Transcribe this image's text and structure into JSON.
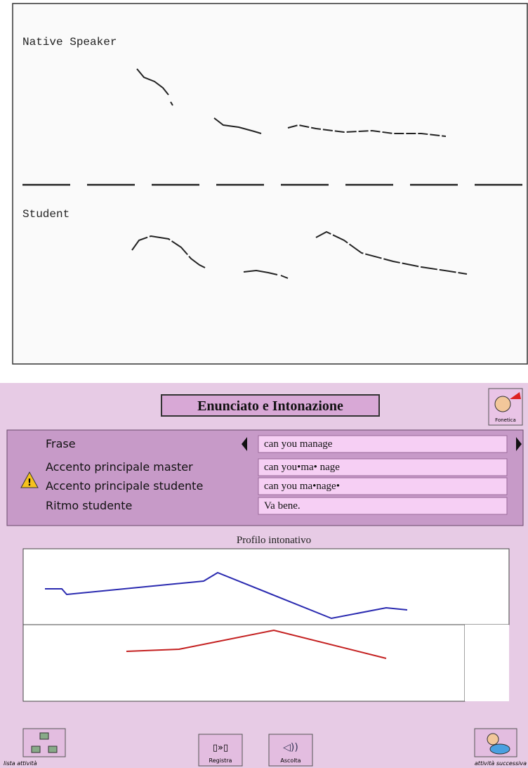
{
  "figure": {
    "top_label": "Native Speaker",
    "bottom_label": "Student"
  },
  "app": {
    "title": "Enunciato e Intonazione",
    "phonetics_button": "Fonetica",
    "rows": [
      {
        "label": "Frase",
        "value": "can you manage"
      },
      {
        "label": "Accento principale master",
        "value": "can you•ma• nage"
      },
      {
        "label": "Accento principale studente",
        "value": "can you ma•nage•"
      },
      {
        "label": "Ritmo studente",
        "value": "Va bene."
      }
    ],
    "profile_title": "Profilo intonativo",
    "buttons": {
      "list": "lista attività",
      "record": "Registra",
      "listen": "Ascolta",
      "next": "attività successiva"
    }
  }
}
